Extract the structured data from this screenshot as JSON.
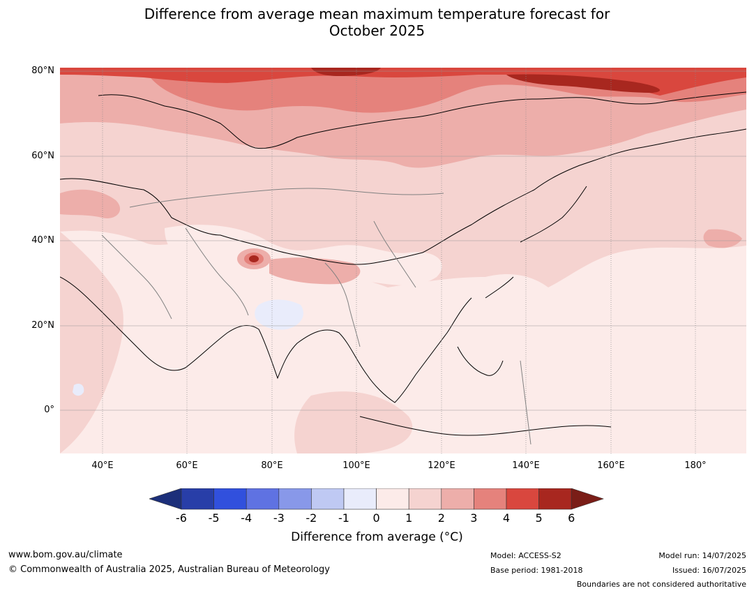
{
  "title": {
    "line1": "Difference from average mean maximum temperature forecast for",
    "line2": "October 2025"
  },
  "map": {
    "region": "Asia",
    "projection": "equirectangular",
    "lon_range": [
      30,
      192
    ],
    "lat_range": [
      -10,
      81
    ],
    "lat_labels": [
      "80°N",
      "60°N",
      "40°N",
      "20°N",
      "0°"
    ],
    "lon_labels": [
      "40°E",
      "60°E",
      "80°E",
      "100°E",
      "120°E",
      "140°E",
      "160°E",
      "180°"
    ],
    "gridlines": true,
    "features": [
      {
        "name": "strong-anomaly-arctic",
        "level": "5 to 6"
      },
      {
        "name": "warm-anomaly-siberia",
        "level": "3 to 4"
      },
      {
        "name": "hotspot-karakoram",
        "level": "above 6"
      },
      {
        "name": "cool-anomaly-central-india",
        "level": "-1 to 0"
      }
    ]
  },
  "colorbar": {
    "ticks": [
      "-6",
      "-5",
      "-4",
      "-3",
      "-2",
      "-1",
      "0",
      "1",
      "2",
      "3",
      "4",
      "5",
      "6"
    ],
    "colors": [
      "#1c2f7a",
      "#283ea8",
      "#3150dd",
      "#5f72e2",
      "#8898e9",
      "#bfc9f3",
      "#e9ecfb",
      "#fcebe9",
      "#f5d3d0",
      "#edaeaa",
      "#e5827c",
      "#d9473e",
      "#a8271f",
      "#7a1d17"
    ],
    "label": "Difference from average (°C)"
  },
  "footer": {
    "website": "www.bom.gov.au/climate",
    "copyright": "© Commonwealth of Australia 2025, Australian Bureau of Meteorology",
    "model": "Model: ACCESS-S2",
    "base_period": "Base period: 1981-2018",
    "model_run": "Model run: 14/07/2025",
    "issued": "Issued: 16/07/2025",
    "disclaimer": "Boundaries are not considered authoritative"
  }
}
